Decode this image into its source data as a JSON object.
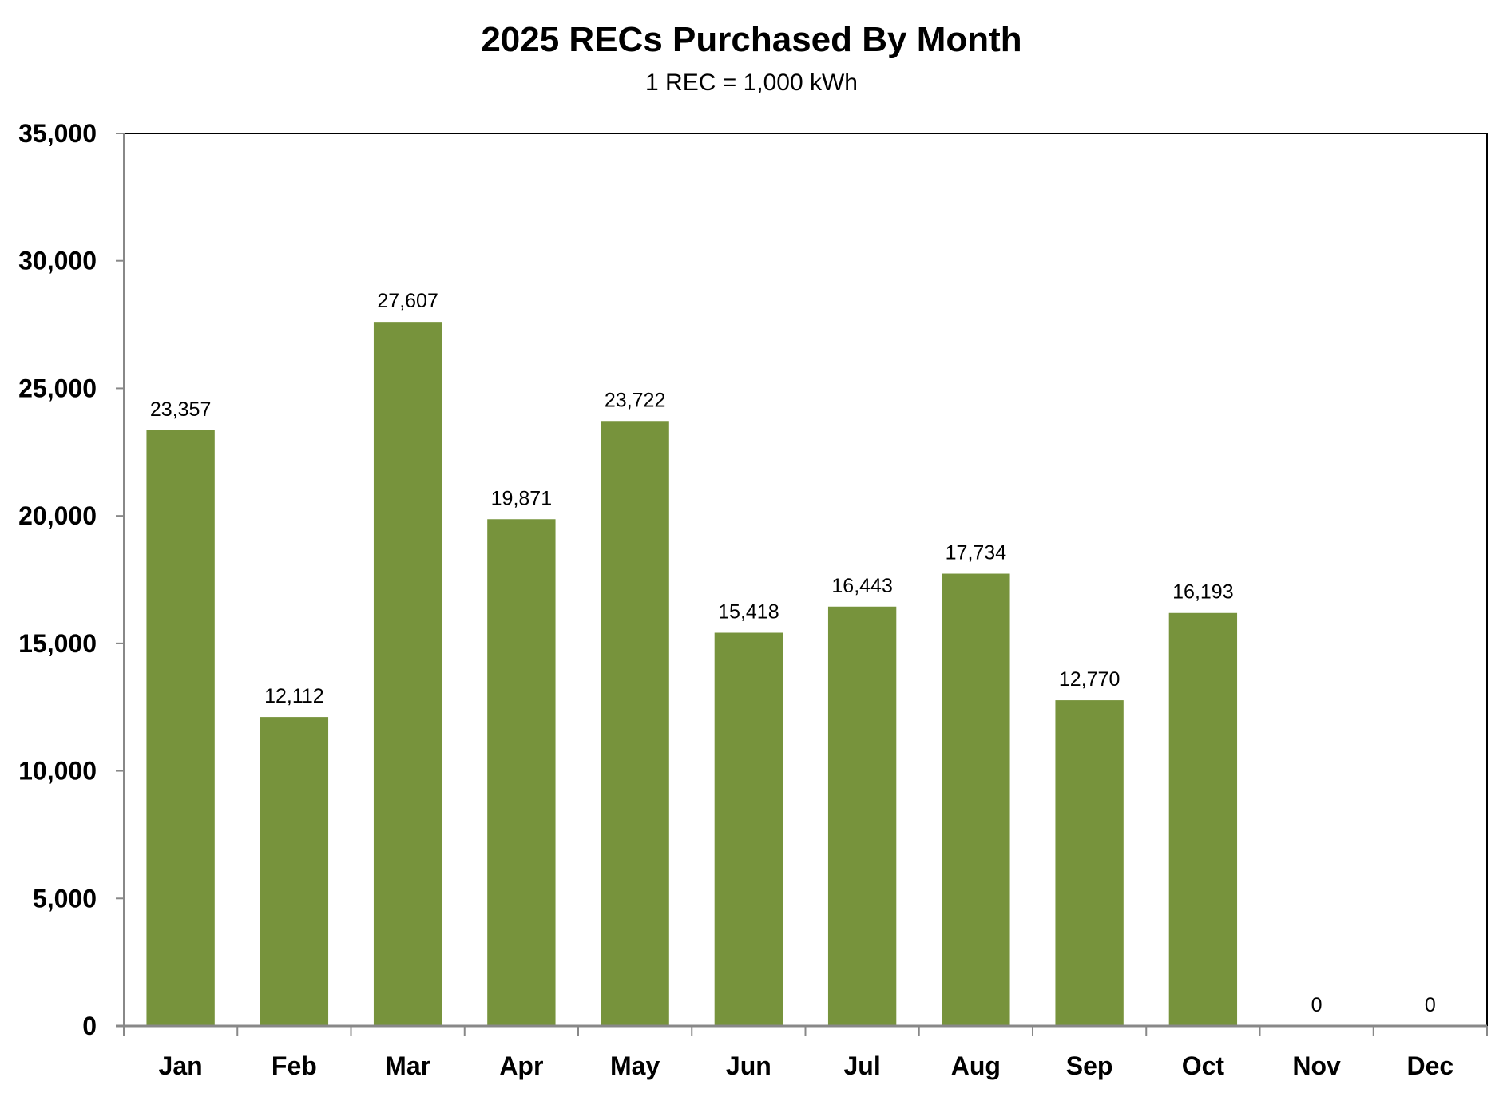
{
  "chart_data": {
    "type": "bar",
    "title": "2025 RECs Purchased By Month",
    "subtitle": "1 REC = 1,000 kWh",
    "xlabel": "",
    "ylabel": "",
    "categories": [
      "Jan",
      "Feb",
      "Mar",
      "Apr",
      "May",
      "Jun",
      "Jul",
      "Aug",
      "Sep",
      "Oct",
      "Nov",
      "Dec"
    ],
    "values": [
      23357,
      12112,
      27607,
      19871,
      23722,
      15418,
      16443,
      17734,
      12770,
      16193,
      0,
      0
    ],
    "data_labels": [
      "23,357",
      "12,112",
      "27,607",
      "19,871",
      "23,722",
      "15,418",
      "16,443",
      "17,734",
      "12,770",
      "16,193",
      "0",
      "0"
    ],
    "ylim": [
      0,
      35000
    ],
    "yticks": [
      0,
      5000,
      10000,
      15000,
      20000,
      25000,
      30000,
      35000
    ],
    "ytick_labels": [
      "0",
      "5,000",
      "10,000",
      "15,000",
      "20,000",
      "25,000",
      "30,000",
      "35,000"
    ],
    "grid": false,
    "legend": "none",
    "bar_color": "#77933C"
  }
}
